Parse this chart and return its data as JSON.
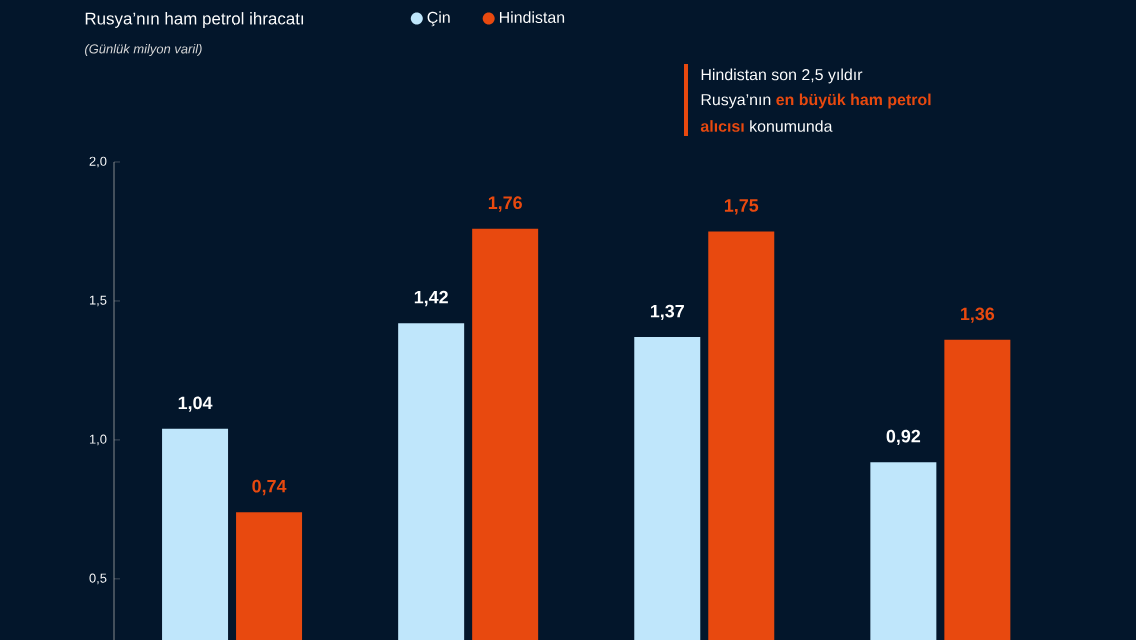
{
  "chart_data": {
    "type": "bar",
    "title": "Rusya’nın ham petrol ihracatı",
    "subtitle": "*(Günlük milyon varil)*",
    "categories": [
      null,
      null,
      null,
      null
    ],
    "series": [
      {
        "name": "Çin",
        "color": "#bfe6fb",
        "values": [
          1.04,
          1.42,
          1.37,
          0.92
        ],
        "value_labels": [
          "1,04",
          "1,42",
          "1,37",
          "0,92"
        ]
      },
      {
        "name": "Hindistan",
        "color": "#e8490f",
        "values": [
          0.74,
          1.76,
          1.75,
          1.36
        ],
        "value_labels": [
          "0,74",
          "1,76",
          "1,75",
          "1,36"
        ]
      }
    ],
    "ylim": [
      0.28,
      2.0
    ],
    "yticks": [
      {
        "value": 0.5,
        "label": "0,5"
      },
      {
        "value": 1.0,
        "label": "1,0"
      },
      {
        "value": 1.5,
        "label": "1,5"
      },
      {
        "value": 2.0,
        "label": "2,0"
      }
    ],
    "legend": "top",
    "annotations": [
      "Hindistan son 2,5 yıldır",
      "Rusya’nın",
      "en büyük ham petrol",
      "alıcısı",
      "konumunda"
    ]
  }
}
